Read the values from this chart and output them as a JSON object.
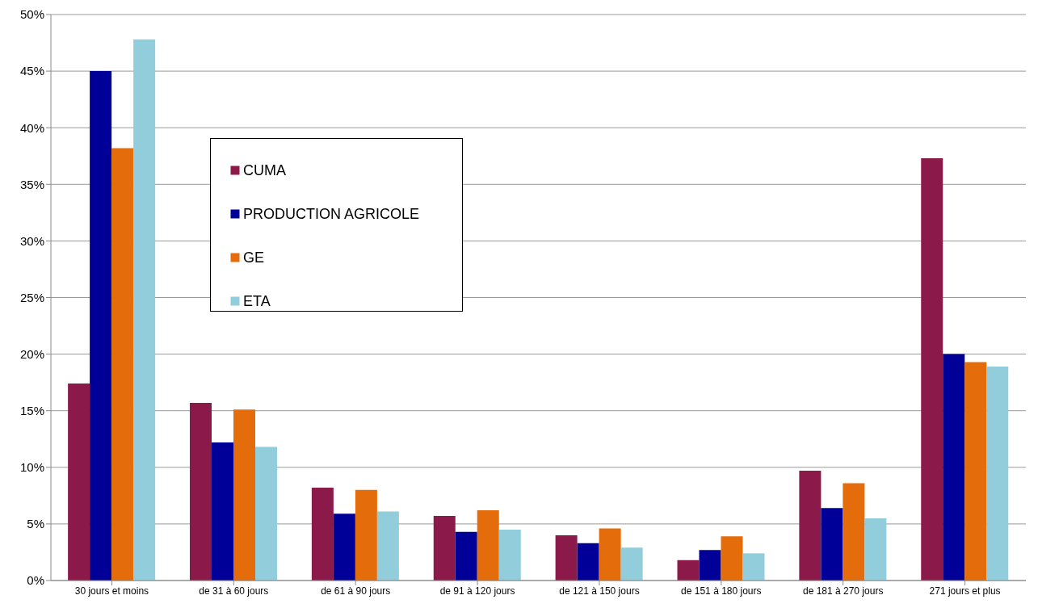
{
  "chart_data": {
    "type": "bar",
    "categories": [
      "30 jours et moins",
      "de 31 à 60 jours",
      "de 61 à 90 jours",
      "de 91 à 120 jours",
      "de 121 à 150 jours",
      "de 151 à 180 jours",
      "de 181 à 270 jours",
      "271 jours et plus"
    ],
    "series": [
      {
        "name": "CUMA",
        "color": "#8b1a4a",
        "values": [
          17.4,
          15.7,
          8.2,
          5.7,
          4.0,
          1.8,
          9.7,
          37.3
        ]
      },
      {
        "name": "PRODUCTION AGRICOLE",
        "color": "#000099",
        "values": [
          45.0,
          12.2,
          5.9,
          4.3,
          3.3,
          2.7,
          6.4,
          20.0
        ]
      },
      {
        "name": "GE",
        "color": "#e46c0a",
        "values": [
          38.2,
          15.1,
          8.0,
          6.2,
          4.6,
          3.9,
          8.6,
          19.3
        ]
      },
      {
        "name": "ETA",
        "color": "#92cddc",
        "values": [
          47.8,
          11.8,
          6.1,
          4.5,
          2.9,
          2.4,
          5.5,
          18.9
        ]
      }
    ],
    "ylim": [
      0,
      50
    ],
    "yticks": [
      {
        "value": 0,
        "label": "0%"
      },
      {
        "value": 5,
        "label": "5%"
      },
      {
        "value": 10,
        "label": "10%"
      },
      {
        "value": 15,
        "label": "15%"
      },
      {
        "value": 20,
        "label": "20%"
      },
      {
        "value": 25,
        "label": "25%"
      },
      {
        "value": 30,
        "label": "30%"
      },
      {
        "value": 35,
        "label": "35%"
      },
      {
        "value": 40,
        "label": "40%"
      },
      {
        "value": 45,
        "label": "45%"
      },
      {
        "value": 50,
        "label": "50%"
      }
    ],
    "grid": "y",
    "legend": "top left"
  }
}
